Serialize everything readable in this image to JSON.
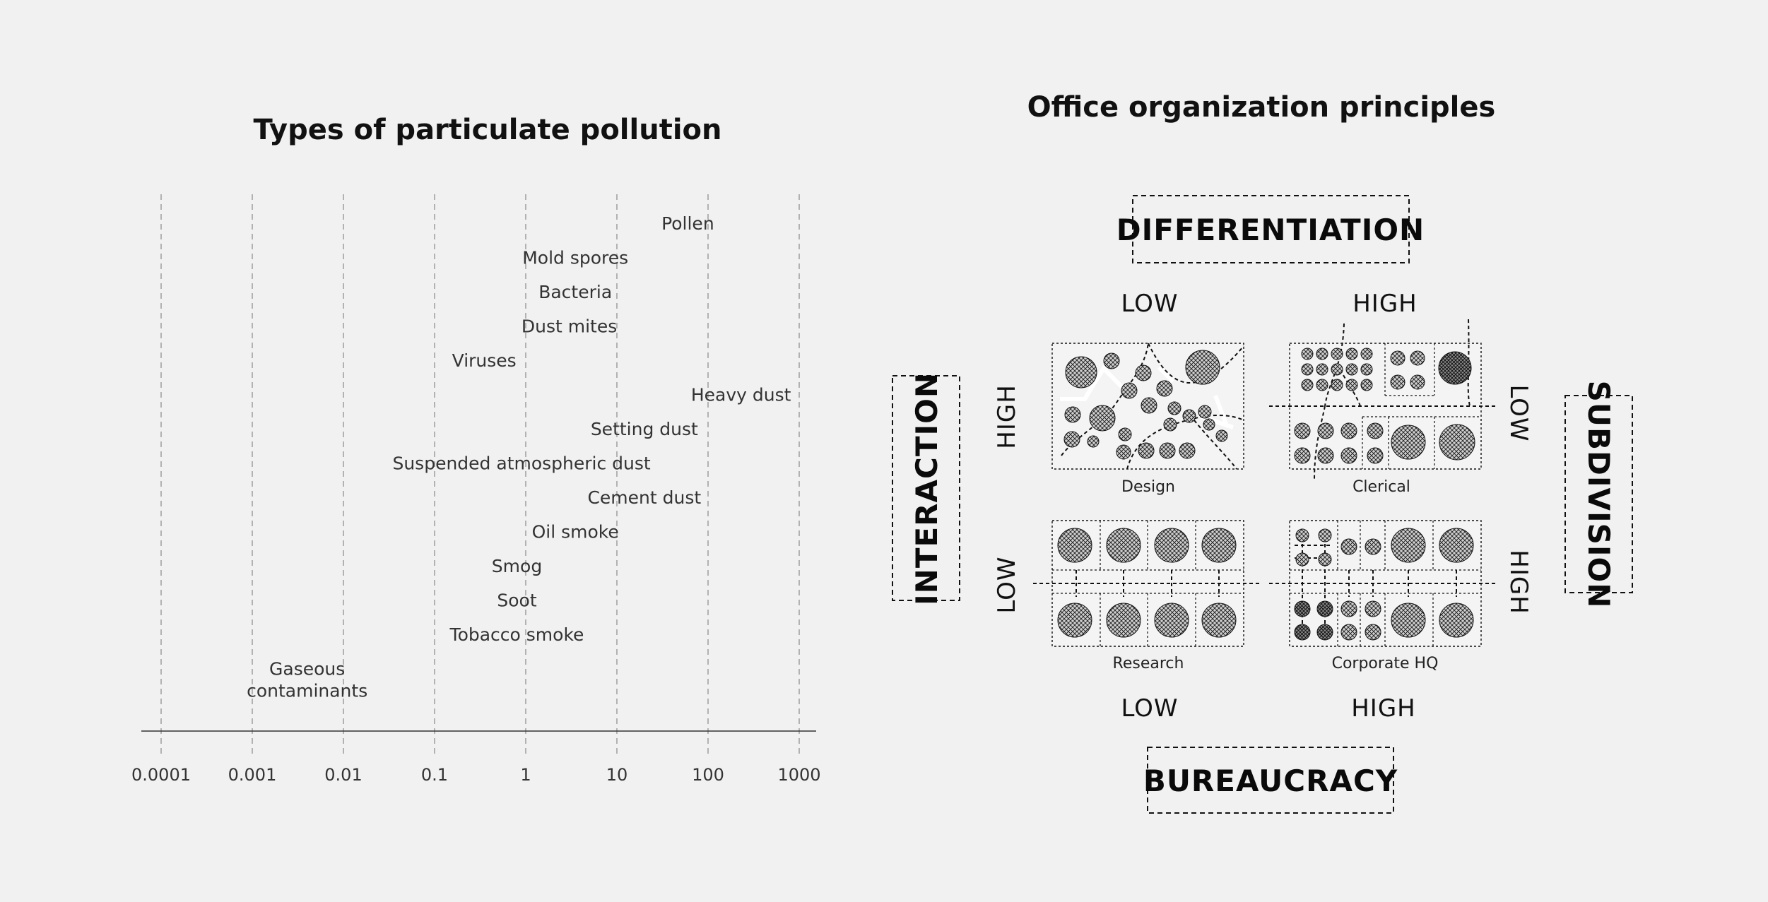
{
  "left_chart": {
    "title": "Types of particulate pollution",
    "chart_data": {
      "type": "range",
      "title": "Types of particulate pollution",
      "xscale": "log",
      "xlim": [
        0.0001,
        1000
      ],
      "ticks": [
        "0.0001",
        "0.001",
        "0.01",
        "0.1",
        "1",
        "10",
        "100",
        "1000"
      ],
      "tick_values": [
        0.0001,
        0.001,
        0.01,
        0.1,
        1,
        10,
        100,
        1000
      ],
      "grid": true,
      "items": [
        {
          "label": "Pollen",
          "center": 60
        },
        {
          "label": "Mold spores",
          "center": 3.5
        },
        {
          "label": "Bacteria",
          "center": 3.5
        },
        {
          "label": "Dust mites",
          "center": 3
        },
        {
          "label": "Viruses",
          "center": 0.35
        },
        {
          "label": "Heavy dust",
          "center": 230
        },
        {
          "label": "Setting dust",
          "center": 20
        },
        {
          "label": "Suspended atmospheric dust",
          "center": 0.9
        },
        {
          "label": "Cement dust",
          "center": 20
        },
        {
          "label": "Oil smoke",
          "center": 3.5
        },
        {
          "label": "Smog",
          "center": 0.8
        },
        {
          "label": "Soot",
          "center": 0.8
        },
        {
          "label": "Tobacco smoke",
          "center": 0.8
        },
        {
          "label": "Gaseous\ncontaminants",
          "center": 0.004
        }
      ]
    }
  },
  "right_diagram": {
    "title": "Office organization principles",
    "axis_top": "DIFFERENTIATION",
    "axis_bottom": "BUREAUCRACY",
    "axis_left": "INTERACTION",
    "axis_right": "SUBDIVISION",
    "top_low": "LOW",
    "top_high": "HIGH",
    "bottom_low": "LOW",
    "bottom_high": "HIGH",
    "left_high": "HIGH",
    "left_low": "LOW",
    "right_low": "LOW",
    "right_high": "HIGH",
    "quadrants": {
      "design": "Design",
      "clerical": "Clerical",
      "research": "Research",
      "corporate": "Corporate HQ"
    },
    "colors": {
      "background": "#f1f1f2",
      "ink": "#1a1a1a"
    }
  }
}
